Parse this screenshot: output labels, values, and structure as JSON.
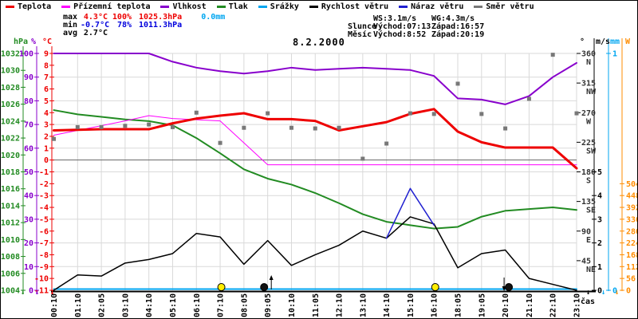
{
  "title": "8.2.2000",
  "legend": {
    "items": [
      {
        "label": "Teplota",
        "color": "#ee0000"
      },
      {
        "label": "Přízemní teplota",
        "color": "#ff00ff"
      },
      {
        "label": "Vlhkost",
        "color": "#8800cc"
      },
      {
        "label": "Tlak",
        "color": "#228b22"
      },
      {
        "label": "Srážky",
        "color": "#00a6f0"
      },
      {
        "label": "Rychlost větru",
        "color": "#000000"
      },
      {
        "label": "Náraz větru",
        "color": "#2020d0"
      },
      {
        "label": "Směr větru",
        "color": "#787878"
      }
    ]
  },
  "stats": {
    "rows": {
      "max": {
        "label": "max",
        "temp": "4.3°C",
        "humidity": "100%",
        "pressure": "1025.3hPa",
        "precip": "0.0mm"
      },
      "min": {
        "label": "min",
        "temp": "-0.7°C",
        "humidity": "78%",
        "pressure": "1011.3hPa"
      },
      "avg": {
        "label": "avg",
        "temp": "2.7°C"
      }
    },
    "max_color": "#ee0000",
    "min_color": "#0000dd",
    "precip_color": "#00a6f0"
  },
  "info": {
    "wind_speed": "WS:3.1m/s",
    "wind_gust": "WG:4.3m/s",
    "sun": {
      "label": "Slunce",
      "rise": "Východ:07:13",
      "set": "Západ:16:57"
    },
    "moon": {
      "label": "Měsíc",
      "rise": "Východ:8:52",
      "set": "Západ:20:19"
    }
  },
  "axes": {
    "pressure_unit": "hPa",
    "humidity_unit": "%",
    "temp_unit": "°C",
    "degree_unit": "°",
    "wind_unit": "m/s",
    "precip_unit": "mm",
    "power_unit": "W",
    "time_label": "čas",
    "pressure_ticks": [
      1032,
      1030,
      1028,
      1026,
      1024,
      1022,
      1020,
      1018,
      1016,
      1014,
      1012,
      1010,
      1008,
      1006,
      1004
    ],
    "humidity_ticks": [
      100,
      90,
      80,
      70,
      60,
      50,
      40,
      30,
      20,
      10,
      0
    ],
    "temp_ticks": [
      9,
      8,
      7,
      6,
      5,
      4,
      3,
      2,
      1,
      0,
      -1,
      -2,
      -3,
      -4,
      -5,
      -6,
      -7,
      -8,
      -9,
      -10,
      -11
    ],
    "direction_ticks": [
      {
        "deg": 360,
        "dir": "N"
      },
      {
        "deg": 315,
        "dir": "NW"
      },
      {
        "deg": 270,
        "dir": "W"
      },
      {
        "deg": 225,
        "dir": "SW"
      },
      {
        "deg": 180,
        "dir": "S"
      },
      {
        "deg": 135,
        "dir": "SE"
      },
      {
        "deg": 90,
        "dir": "E"
      },
      {
        "deg": 45,
        "dir": "NE"
      }
    ],
    "wind_ticks": [
      5,
      4,
      3,
      2,
      1,
      0
    ],
    "precip_ticks": [
      1,
      0
    ],
    "power_ticks": [
      504,
      448,
      392,
      336,
      280,
      224,
      168,
      112,
      56,
      0
    ]
  },
  "markers": [
    {
      "name": "sunrise",
      "symbol": "sun",
      "time": "07:13",
      "slot_pos": 7.05,
      "arrow": null
    },
    {
      "name": "moonrise",
      "symbol": "moon",
      "time": "8:52",
      "slot_pos": 8.85,
      "arrow": "up"
    },
    {
      "name": "sunset",
      "symbol": "sun",
      "time": "16:57",
      "slot_pos": 16.05,
      "arrow": null
    },
    {
      "name": "moonset",
      "symbol": "moon",
      "time": "20:19",
      "slot_pos": 19.15,
      "arrow": "down"
    }
  ],
  "colors": {
    "grid": "#d9d9d9",
    "zero_line": "#666666",
    "pressure_axis": "#228b22",
    "humidity_axis": "#8800cc",
    "temp_axis": "#ee0000",
    "degree_axis": "#000000",
    "wind_axis": "#000000",
    "precip_axis": "#00a6f0",
    "power_axis": "#ff8c00",
    "sun": "#ffee00",
    "moon": "#111111"
  },
  "chart_data": {
    "type": "line",
    "title": "8.2.2000",
    "xlabel": "čas",
    "x_categories": [
      "00:10",
      "01:10",
      "02:05",
      "03:10",
      "04:10",
      "05:10",
      "06:10",
      "07:10",
      "08:05",
      "09:05",
      "10:10",
      "11:05",
      "12:10",
      "13:10",
      "14:10",
      "15:10",
      "16:10",
      "18:05",
      "19:05",
      "20:10",
      "21:10",
      "22:10",
      "23:10"
    ],
    "axis_ranges": {
      "temp": [
        -11,
        9
      ],
      "humidity": [
        0,
        100
      ],
      "pressure": [
        1004,
        1032
      ],
      "wind": [
        0,
        10
      ],
      "direction": [
        0,
        360
      ],
      "precip": [
        0,
        1
      ],
      "power": [
        0,
        1120
      ]
    },
    "series": [
      {
        "name": "Vlhkost",
        "unit": "%",
        "axis": "humidity",
        "color": "#8800cc",
        "width": 2,
        "style": "line",
        "values": [
          100,
          100,
          100,
          100,
          100,
          96.5,
          94,
          92.5,
          91.5,
          92.5,
          94,
          93,
          93.5,
          94,
          93.5,
          93,
          90.5,
          81,
          80.5,
          78.5,
          82,
          90,
          96
        ]
      },
      {
        "name": "Tlak",
        "unit": "hPa",
        "axis": "pressure",
        "color": "#228b22",
        "width": 2,
        "style": "line",
        "values": [
          1025.3,
          1024.8,
          1024.5,
          1024.2,
          1024.0,
          1023.5,
          1022.0,
          1020.2,
          1018.3,
          1017.2,
          1016.5,
          1015.5,
          1014.3,
          1013.0,
          1012.1,
          1011.7,
          1011.3,
          1011.5,
          1012.7,
          1013.4,
          1013.6,
          1013.8,
          1013.5
        ]
      },
      {
        "name": "Srážky",
        "unit": "mm",
        "axis": "precip",
        "color": "#00a6f0",
        "width": 2,
        "style": "line",
        "values": [
          0,
          0,
          0,
          0,
          0,
          0,
          0,
          0,
          0,
          0,
          0,
          0,
          0,
          0,
          0,
          0,
          0,
          0,
          0,
          0,
          0,
          0,
          0
        ]
      },
      {
        "name": "Přízemní teplota",
        "unit": "°C",
        "axis": "temp",
        "color": "#ff00ff",
        "width": 1,
        "style": "line",
        "values": [
          2.1,
          2.5,
          2.9,
          3.3,
          3.75,
          3.5,
          3.4,
          3.3,
          1.45,
          -0.4,
          -0.4,
          -0.4,
          -0.4,
          -0.4,
          -0.4,
          -0.4,
          -0.4,
          -0.4,
          -0.4,
          -0.4,
          -0.4,
          -0.4,
          -0.4
        ]
      },
      {
        "name": "Rychlost větru",
        "unit": "m/s",
        "axis": "wind",
        "color": "#000000",
        "width": 1.5,
        "style": "line",
        "values": [
          0,
          0.65,
          0.6,
          1.15,
          1.3,
          1.55,
          2.4,
          2.25,
          1.1,
          2.1,
          1.05,
          1.5,
          1.9,
          2.5,
          2.2,
          3.1,
          2.8,
          0.95,
          1.55,
          1.7,
          0.5,
          0.25,
          0
        ]
      },
      {
        "name": "Náraz větru",
        "unit": "m/s",
        "axis": "wind",
        "color": "#2020d0",
        "width": 1.5,
        "style": "line",
        "values": [
          null,
          null,
          null,
          null,
          null,
          null,
          null,
          null,
          null,
          null,
          null,
          null,
          null,
          null,
          2.2,
          4.3,
          2.75,
          null,
          null,
          null,
          null,
          null,
          null
        ]
      },
      {
        "name": "Teplota",
        "unit": "°C",
        "axis": "temp",
        "color": "#ee0000",
        "width": 3,
        "style": "line",
        "values": [
          2.5,
          2.55,
          2.6,
          2.6,
          2.6,
          3.1,
          3.5,
          3.75,
          3.95,
          3.45,
          3.45,
          3.3,
          2.5,
          2.85,
          3.2,
          3.9,
          4.3,
          2.4,
          1.5,
          1.05,
          1.05,
          1.05,
          -0.7
        ]
      },
      {
        "name": "Směr větru",
        "unit": "°",
        "axis": "direction",
        "color": "#787878",
        "width": 5,
        "style": "points",
        "values": [
          230,
          248,
          248,
          250,
          252,
          248,
          270,
          224,
          247,
          269,
          247,
          246,
          247,
          200,
          223,
          269,
          268,
          314,
          268,
          246,
          291,
          358,
          269
        ]
      }
    ]
  }
}
